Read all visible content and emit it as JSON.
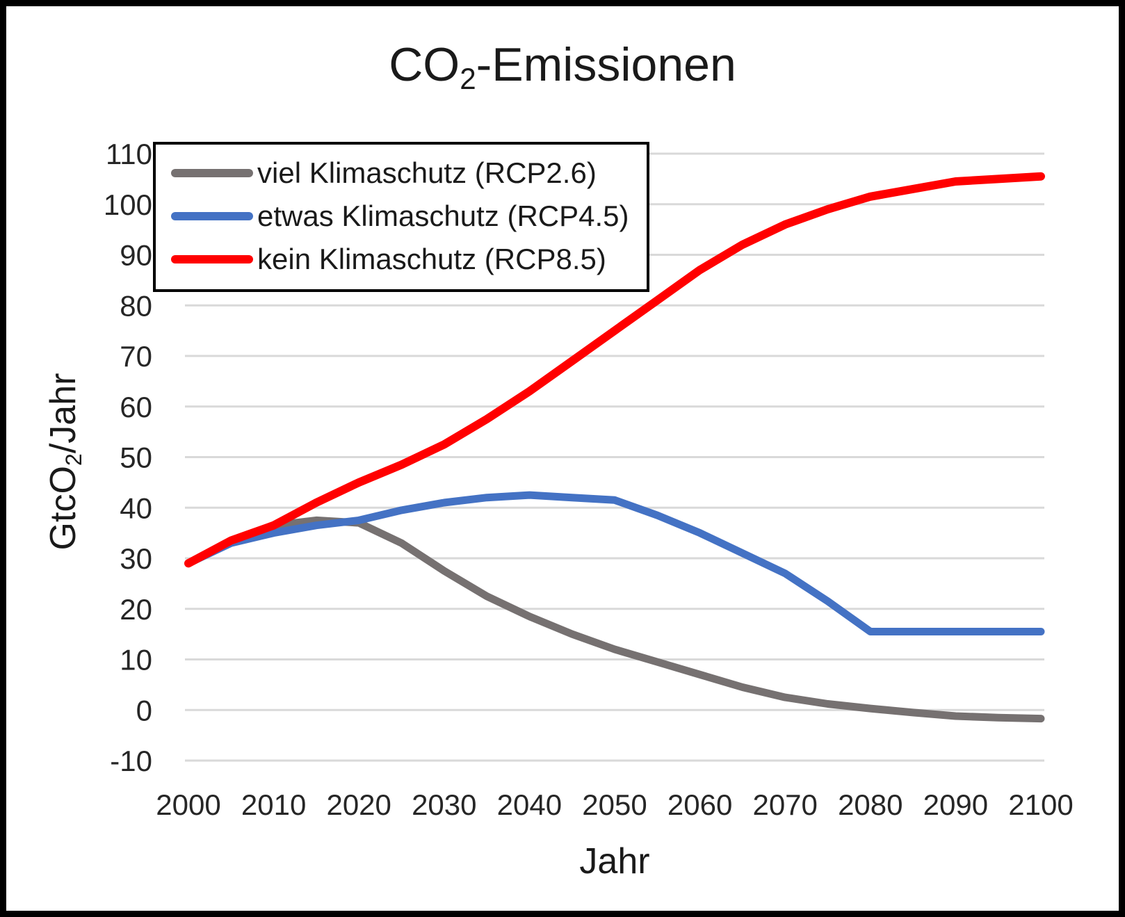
{
  "title": {
    "prefix": "CO",
    "sub": "2",
    "suffix": "-Emissionen"
  },
  "axes": {
    "x_label": "Jahr",
    "y_label": {
      "prefix": "GtcO",
      "sub": "2",
      "suffix": "/Jahr"
    },
    "x_ticks": [
      2000,
      2010,
      2020,
      2030,
      2040,
      2050,
      2060,
      2070,
      2080,
      2090,
      2100
    ],
    "y_ticks": [
      110,
      100,
      90,
      80,
      70,
      60,
      50,
      40,
      30,
      20,
      10,
      0,
      -10
    ],
    "grid_color": "#d9d9d9"
  },
  "chart_data": {
    "type": "line",
    "title": "CO2-Emissionen",
    "xlabel": "Jahr",
    "ylabel": "GtcO2/Jahr",
    "x": [
      2000,
      2005,
      2010,
      2015,
      2020,
      2025,
      2030,
      2035,
      2040,
      2045,
      2050,
      2055,
      2060,
      2065,
      2070,
      2075,
      2080,
      2085,
      2090,
      2095,
      2100
    ],
    "series": [
      {
        "name": "viel Klimaschutz (RCP2.6)",
        "color": "#767171",
        "values": [
          29,
          33.5,
          36.5,
          37.5,
          37,
          33,
          27.5,
          22.5,
          18.5,
          15,
          12,
          9.5,
          7,
          4.5,
          2.5,
          1.2,
          0.3,
          -0.5,
          -1.2,
          -1.5,
          -1.7
        ]
      },
      {
        "name": "etwas Klimaschutz (RCP4.5)",
        "color": "#4472c4",
        "values": [
          29,
          33,
          35,
          36.5,
          37.5,
          39.5,
          41,
          42,
          42.5,
          42,
          41.5,
          38.5,
          35,
          31,
          27,
          21.5,
          15.5,
          15.5,
          15.5,
          15.5,
          15.5
        ]
      },
      {
        "name": "kein Klimaschutz (RCP8.5)",
        "color": "#ff0000",
        "values": [
          29,
          33.5,
          36.5,
          41,
          45,
          48.5,
          52.5,
          57.5,
          63,
          69,
          75,
          81,
          87,
          92,
          96,
          99,
          101.5,
          103,
          104.5,
          105,
          105.5
        ]
      }
    ],
    "xlim": [
      2000,
      2100
    ],
    "ylim": [
      -10,
      110
    ],
    "grid": "horizontal",
    "legend_position": "top-left"
  }
}
